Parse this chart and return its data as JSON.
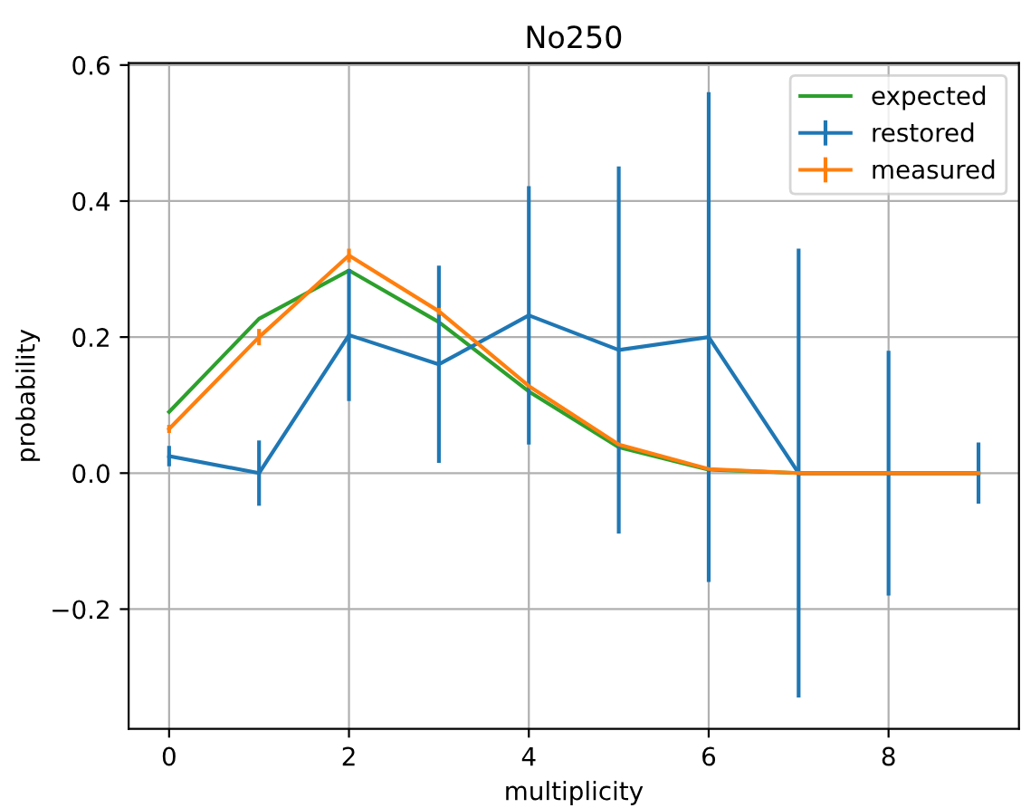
{
  "chart_data": {
    "type": "line",
    "title": "No250",
    "xlabel": "multiplicity",
    "ylabel": "probability",
    "x": [
      0,
      1,
      2,
      3,
      4,
      5,
      6,
      7,
      8,
      9
    ],
    "series": [
      {
        "name": "expected",
        "color": "#2ca02c",
        "values": [
          0.09,
          0.227,
          0.298,
          0.222,
          0.12,
          0.038,
          0.005,
          0,
          0,
          0
        ]
      },
      {
        "name": "restored",
        "color": "#1f77b4",
        "values": [
          0.025,
          0.0,
          0.203,
          0.16,
          0.232,
          0.181,
          0.2,
          0.0,
          0.0,
          0.0
        ],
        "errors": [
          0.015,
          0.048,
          0.097,
          0.145,
          0.19,
          0.27,
          0.36,
          0.33,
          0.18,
          0.045
        ]
      },
      {
        "name": "measured",
        "color": "#ff7f0e",
        "values": [
          0.065,
          0.2,
          0.32,
          0.238,
          0.128,
          0.042,
          0.006,
          0,
          0,
          0
        ],
        "errors": [
          0.006,
          0.012,
          0.01,
          0.005,
          null,
          null,
          null,
          null,
          null,
          null
        ]
      }
    ],
    "xlim": [
      -0.45,
      9.45
    ],
    "ylim": [
      -0.376,
      0.603
    ],
    "xticks": [
      0,
      2,
      4,
      6,
      8
    ],
    "yticks": [
      {
        "value": -0.2,
        "label": "−0.2"
      },
      {
        "value": 0.0,
        "label": "0.0"
      },
      {
        "value": 0.2,
        "label": "0.2"
      },
      {
        "value": 0.4,
        "label": "0.4"
      },
      {
        "value": 0.6,
        "label": "0.6"
      }
    ],
    "grid": true,
    "legend": "top right"
  }
}
